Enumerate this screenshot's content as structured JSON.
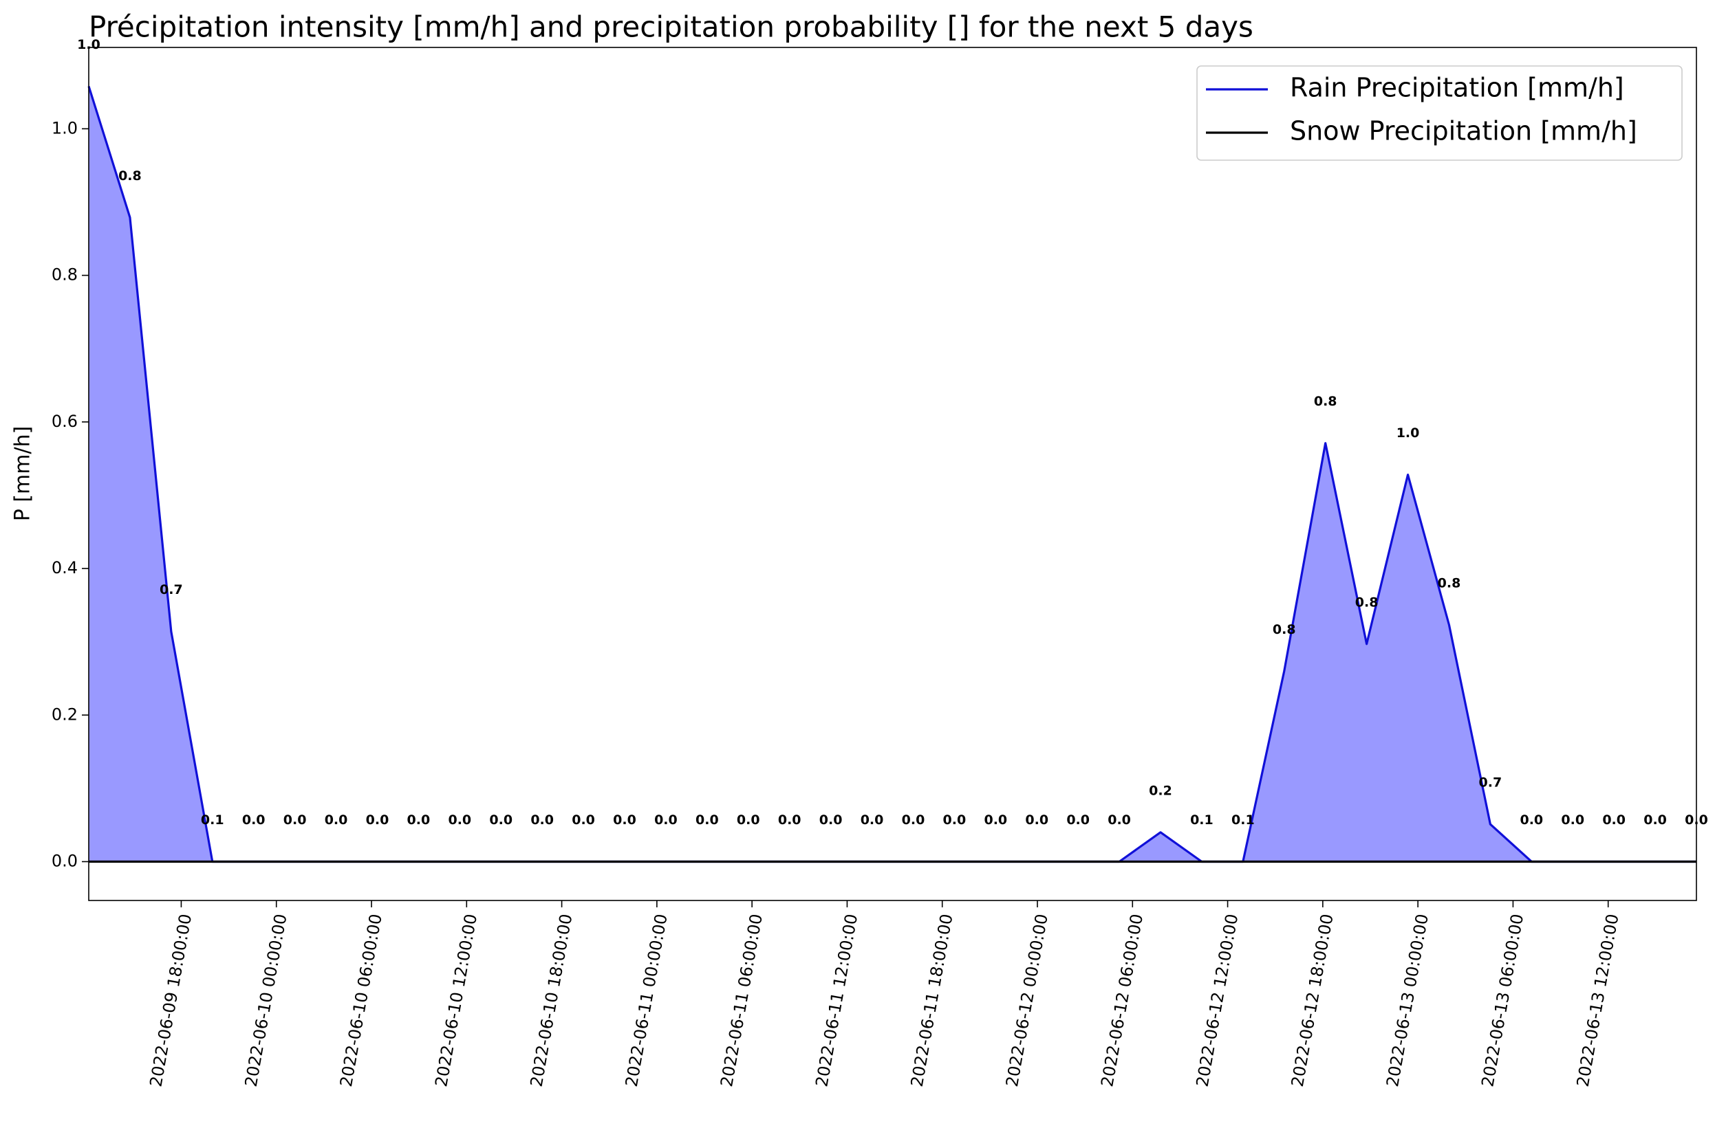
{
  "chart_data": {
    "type": "line",
    "title": "Précipitation intensity [mm/h] and precipitation probability [] for the next 5 days",
    "ylabel": "P [mm/h]",
    "x": [
      "2022-06-09 12:10:00",
      "2022-06-09 14:46:00",
      "2022-06-09 17:22:00",
      "2022-06-09 19:58:00",
      "2022-06-09 22:34:00",
      "2022-06-10 01:10:00",
      "2022-06-10 03:46:00",
      "2022-06-10 06:22:00",
      "2022-06-10 08:58:00",
      "2022-06-10 11:34:00",
      "2022-06-10 14:10:00",
      "2022-06-10 16:46:00",
      "2022-06-10 19:22:00",
      "2022-06-10 21:58:00",
      "2022-06-11 00:34:00",
      "2022-06-11 03:10:00",
      "2022-06-11 05:46:00",
      "2022-06-11 08:22:00",
      "2022-06-11 10:58:00",
      "2022-06-11 13:34:00",
      "2022-06-11 16:10:00",
      "2022-06-11 18:46:00",
      "2022-06-11 21:22:00",
      "2022-06-11 23:58:00",
      "2022-06-12 02:34:00",
      "2022-06-12 05:10:00",
      "2022-06-12 07:46:00",
      "2022-06-12 10:22:00",
      "2022-06-12 12:58:00",
      "2022-06-12 15:34:00",
      "2022-06-12 18:10:00",
      "2022-06-12 20:46:00",
      "2022-06-12 23:22:00",
      "2022-06-13 01:58:00",
      "2022-06-13 04:34:00",
      "2022-06-13 07:10:00",
      "2022-06-13 09:46:00",
      "2022-06-13 12:22:00",
      "2022-06-13 14:58:00",
      "2022-06-13 17:34:00"
    ],
    "series": [
      {
        "name": "Rain Precipitation [mm/h]",
        "color": "#1010d8",
        "fill_color": "#9999ff",
        "values": [
          1.058,
          0.879,
          0.314,
          0,
          0,
          0,
          0,
          0,
          0,
          0,
          0,
          0,
          0,
          0,
          0,
          0,
          0,
          0,
          0,
          0,
          0,
          0,
          0,
          0,
          0,
          0,
          0.04,
          0,
          0,
          0.26,
          0.571,
          0.297,
          0.528,
          0.323,
          0.051,
          0,
          0,
          0,
          0,
          0
        ]
      },
      {
        "name": "Snow Precipitation [mm/h]",
        "color": "#000000",
        "values": [
          0,
          0,
          0,
          0,
          0,
          0,
          0,
          0,
          0,
          0,
          0,
          0,
          0,
          0,
          0,
          0,
          0,
          0,
          0,
          0,
          0,
          0,
          0,
          0,
          0,
          0,
          0,
          0,
          0,
          0,
          0,
          0,
          0,
          0,
          0,
          0,
          0,
          0,
          0,
          0
        ]
      }
    ],
    "probability": {
      "values": [
        1.0,
        0.8,
        0.7,
        0.1,
        0,
        0,
        0,
        0,
        0,
        0,
        0,
        0,
        0,
        0,
        0,
        0,
        0,
        0,
        0,
        0,
        0,
        0,
        0,
        0,
        0,
        0,
        0.2,
        0.1,
        0.1,
        0.8,
        0.8,
        0.8,
        1.0,
        0.8,
        0.7,
        0,
        0,
        0,
        0,
        0
      ],
      "value_labels": [
        "1.0",
        "0.8",
        "0.7",
        "0.1",
        "0.0",
        "0.0",
        "0.0",
        "0.0",
        "0.0",
        "0.0",
        "0.0",
        "0.0",
        "0.0",
        "0.0",
        "0.0",
        "0.0",
        "0.0",
        "0.0",
        "0.0",
        "0.0",
        "0.0",
        "0.0",
        "0.0",
        "0.0",
        "0.0",
        "0.0",
        "0.2",
        "0.1",
        "0.1",
        "0.8",
        "0.8",
        "0.8",
        "1.0",
        "0.8",
        "0.7",
        "0.0",
        "0.0",
        "0.0",
        "0.0",
        "0.0"
      ]
    },
    "xlim": [
      "2022-06-09 12:10:00",
      "2022-06-13 17:34:00"
    ],
    "xticks": [
      "2022-06-09 18:00:00",
      "2022-06-10 00:00:00",
      "2022-06-10 06:00:00",
      "2022-06-10 12:00:00",
      "2022-06-10 18:00:00",
      "2022-06-11 00:00:00",
      "2022-06-11 06:00:00",
      "2022-06-11 12:00:00",
      "2022-06-11 18:00:00",
      "2022-06-12 00:00:00",
      "2022-06-12 06:00:00",
      "2022-06-12 12:00:00",
      "2022-06-12 18:00:00",
      "2022-06-13 00:00:00",
      "2022-06-13 06:00:00",
      "2022-06-13 12:00:00"
    ],
    "ylim": [
      -0.053,
      1.111
    ],
    "yticks": [
      {
        "value": 0,
        "label": "0.0"
      },
      {
        "value": 0.2,
        "label": "0.2"
      },
      {
        "value": 0.4,
        "label": "0.4"
      },
      {
        "value": 0.6,
        "label": "0.6"
      },
      {
        "value": 0.8,
        "label": "0.8"
      },
      {
        "value": 1.0,
        "label": "1.0"
      }
    ],
    "legend": "upper right"
  }
}
